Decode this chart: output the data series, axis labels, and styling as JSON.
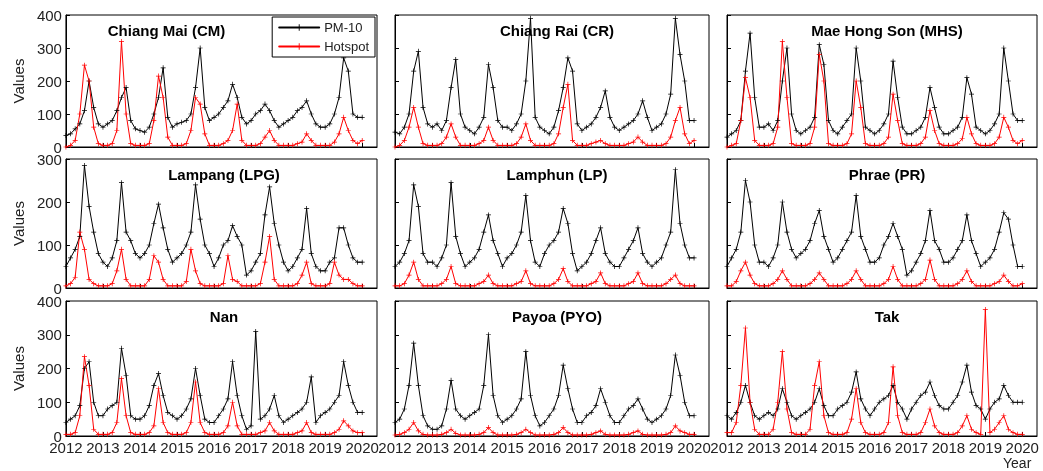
{
  "chart_data": [
    {
      "type": "line",
      "title": "Chiang Mai (CM)",
      "ylabel": "Values",
      "marker": "cross",
      "legend": "top right",
      "tick_labels": "y",
      "xlim": [
        2012,
        2020.4
      ],
      "xticks": [
        2012,
        2013,
        2014,
        2015,
        2016,
        2017,
        2018,
        2019,
        2020
      ],
      "ylim": [
        0,
        400
      ],
      "yticks": [
        0,
        100,
        200,
        300,
        400
      ],
      "x": [
        2012,
        2012.125,
        2012.25,
        2012.375,
        2012.5,
        2012.625,
        2012.75,
        2012.875,
        2013,
        2013.125,
        2013.25,
        2013.375,
        2013.5,
        2013.625,
        2013.75,
        2013.875,
        2014,
        2014.125,
        2014.25,
        2014.375,
        2014.5,
        2014.625,
        2014.75,
        2014.875,
        2015,
        2015.125,
        2015.25,
        2015.375,
        2015.5,
        2015.625,
        2015.75,
        2015.875,
        2016,
        2016.125,
        2016.25,
        2016.375,
        2016.5,
        2016.625,
        2016.75,
        2016.875,
        2017,
        2017.125,
        2017.25,
        2017.375,
        2017.5,
        2017.625,
        2017.75,
        2017.875,
        2018,
        2018.125,
        2018.25,
        2018.375,
        2018.5,
        2018.625,
        2018.75,
        2018.875,
        2019,
        2019.125,
        2019.25,
        2019.375,
        2019.5,
        2019.625,
        2019.75,
        2019.875,
        2020
      ],
      "series": [
        {
          "name": "PM-10",
          "color": "#000000",
          "values": [
            35,
            40,
            55,
            70,
            110,
            200,
            120,
            70,
            60,
            70,
            80,
            110,
            150,
            180,
            80,
            55,
            50,
            45,
            60,
            100,
            150,
            240,
            90,
            60,
            70,
            75,
            80,
            100,
            180,
            300,
            120,
            80,
            90,
            100,
            120,
            140,
            190,
            150,
            90,
            70,
            80,
            100,
            110,
            130,
            110,
            80,
            60,
            70,
            80,
            90,
            110,
            120,
            140,
            100,
            70,
            60,
            60,
            70,
            100,
            150,
            270,
            230,
            100,
            90,
            90
          ]
        },
        {
          "name": "Hotspot",
          "color": "#ff0000",
          "values": [
            0,
            5,
            20,
            100,
            248,
            200,
            60,
            10,
            5,
            5,
            10,
            50,
            320,
            100,
            10,
            5,
            5,
            5,
            10,
            80,
            215,
            150,
            30,
            5,
            5,
            5,
            10,
            50,
            150,
            130,
            40,
            5,
            5,
            5,
            10,
            20,
            50,
            130,
            20,
            5,
            5,
            5,
            10,
            30,
            50,
            20,
            5,
            5,
            5,
            5,
            10,
            15,
            40,
            20,
            5,
            5,
            5,
            5,
            15,
            40,
            90,
            50,
            20,
            10,
            20
          ]
        }
      ]
    },
    {
      "type": "line",
      "title": "Chiang Rai (CR)",
      "marker": "cross",
      "tick_labels": false,
      "xlim": [
        2012,
        2020.4
      ],
      "xticks": [
        2012,
        2013,
        2014,
        2015,
        2016,
        2017,
        2018,
        2019,
        2020
      ],
      "ylim": [
        0,
        400
      ],
      "yticks": [
        0,
        100,
        200,
        300,
        400
      ],
      "x": [
        2012,
        2012.125,
        2012.25,
        2012.375,
        2012.5,
        2012.625,
        2012.75,
        2012.875,
        2013,
        2013.125,
        2013.25,
        2013.375,
        2013.5,
        2013.625,
        2013.75,
        2013.875,
        2014,
        2014.125,
        2014.25,
        2014.375,
        2014.5,
        2014.625,
        2014.75,
        2014.875,
        2015,
        2015.125,
        2015.25,
        2015.375,
        2015.5,
        2015.625,
        2015.75,
        2015.875,
        2016,
        2016.125,
        2016.25,
        2016.375,
        2016.5,
        2016.625,
        2016.75,
        2016.875,
        2017,
        2017.125,
        2017.25,
        2017.375,
        2017.5,
        2017.625,
        2017.75,
        2017.875,
        2018,
        2018.125,
        2018.25,
        2018.375,
        2018.5,
        2018.625,
        2018.75,
        2018.875,
        2019,
        2019.125,
        2019.25,
        2019.375,
        2019.5,
        2019.625,
        2019.75,
        2019.875,
        2020
      ],
      "series": [
        {
          "color": "#000000",
          "values": [
            45,
            40,
            60,
            100,
            230,
            290,
            120,
            70,
            60,
            70,
            50,
            80,
            180,
            265,
            100,
            60,
            50,
            40,
            60,
            90,
            250,
            180,
            80,
            60,
            60,
            50,
            70,
            100,
            200,
            390,
            90,
            60,
            50,
            40,
            60,
            110,
            180,
            270,
            230,
            70,
            50,
            60,
            70,
            90,
            120,
            170,
            90,
            60,
            50,
            60,
            70,
            80,
            100,
            140,
            90,
            50,
            60,
            70,
            100,
            160,
            390,
            280,
            200,
            80,
            80
          ]
        },
        {
          "color": "#ff0000",
          "values": [
            0,
            5,
            20,
            60,
            120,
            60,
            10,
            5,
            5,
            5,
            10,
            30,
            70,
            30,
            5,
            5,
            5,
            5,
            10,
            20,
            60,
            20,
            5,
            5,
            5,
            5,
            10,
            30,
            70,
            20,
            5,
            5,
            5,
            5,
            10,
            40,
            120,
            190,
            20,
            5,
            5,
            5,
            10,
            15,
            20,
            10,
            5,
            5,
            5,
            5,
            10,
            15,
            30,
            15,
            5,
            5,
            5,
            5,
            10,
            30,
            80,
            120,
            40,
            10,
            20
          ]
        }
      ]
    },
    {
      "type": "line",
      "title": "Mae Hong Son (MHS)",
      "marker": "cross",
      "tick_labels": false,
      "xlim": [
        2012,
        2020.4
      ],
      "xticks": [
        2012,
        2013,
        2014,
        2015,
        2016,
        2017,
        2018,
        2019,
        2020
      ],
      "ylim": [
        0,
        400
      ],
      "yticks": [
        0,
        100,
        200,
        300,
        400
      ],
      "x": [
        2012,
        2012.125,
        2012.25,
        2012.375,
        2012.5,
        2012.625,
        2012.75,
        2012.875,
        2013,
        2013.125,
        2013.25,
        2013.375,
        2013.5,
        2013.625,
        2013.75,
        2013.875,
        2014,
        2014.125,
        2014.25,
        2014.375,
        2014.5,
        2014.625,
        2014.75,
        2014.875,
        2015,
        2015.125,
        2015.25,
        2015.375,
        2015.5,
        2015.625,
        2015.75,
        2015.875,
        2016,
        2016.125,
        2016.25,
        2016.375,
        2016.5,
        2016.625,
        2016.75,
        2016.875,
        2017,
        2017.125,
        2017.25,
        2017.375,
        2017.5,
        2017.625,
        2017.75,
        2017.875,
        2018,
        2018.125,
        2018.25,
        2018.375,
        2018.5,
        2018.625,
        2018.75,
        2018.875,
        2019,
        2019.125,
        2019.25,
        2019.375,
        2019.5,
        2019.625,
        2019.75,
        2019.875,
        2020
      ],
      "series": [
        {
          "color": "#000000",
          "values": [
            30,
            40,
            50,
            80,
            230,
            345,
            150,
            60,
            60,
            70,
            50,
            80,
            200,
            300,
            100,
            50,
            40,
            50,
            60,
            90,
            310,
            250,
            80,
            50,
            40,
            60,
            80,
            100,
            300,
            200,
            60,
            50,
            40,
            50,
            70,
            100,
            260,
            150,
            60,
            40,
            40,
            50,
            60,
            90,
            180,
            120,
            60,
            40,
            40,
            50,
            60,
            90,
            210,
            160,
            60,
            50,
            40,
            50,
            70,
            100,
            300,
            200,
            100,
            80,
            80
          ]
        },
        {
          "color": "#ff0000",
          "values": [
            0,
            5,
            10,
            80,
            210,
            150,
            20,
            5,
            5,
            5,
            10,
            60,
            320,
            150,
            10,
            5,
            5,
            5,
            10,
            60,
            280,
            200,
            10,
            5,
            5,
            5,
            10,
            40,
            200,
            120,
            10,
            5,
            5,
            5,
            10,
            30,
            160,
            80,
            10,
            5,
            5,
            5,
            10,
            30,
            110,
            50,
            10,
            5,
            5,
            5,
            10,
            25,
            90,
            40,
            10,
            5,
            5,
            5,
            10,
            30,
            90,
            60,
            20,
            10,
            20
          ]
        }
      ]
    },
    {
      "type": "line",
      "title": "Lampang (LPG)",
      "ylabel": "Values",
      "marker": "cross",
      "tick_labels": "y",
      "xlim": [
        2012,
        2020.4
      ],
      "xticks": [
        2012,
        2013,
        2014,
        2015,
        2016,
        2017,
        2018,
        2019,
        2020
      ],
      "ylim": [
        0,
        300
      ],
      "yticks": [
        0,
        100,
        200,
        300
      ],
      "x": [
        2012,
        2012.125,
        2012.25,
        2012.375,
        2012.5,
        2012.625,
        2012.75,
        2012.875,
        2013,
        2013.125,
        2013.25,
        2013.375,
        2013.5,
        2013.625,
        2013.75,
        2013.875,
        2014,
        2014.125,
        2014.25,
        2014.375,
        2014.5,
        2014.625,
        2014.75,
        2014.875,
        2015,
        2015.125,
        2015.25,
        2015.375,
        2015.5,
        2015.625,
        2015.75,
        2015.875,
        2016,
        2016.125,
        2016.25,
        2016.375,
        2016.5,
        2016.625,
        2016.75,
        2016.875,
        2017,
        2017.125,
        2017.25,
        2017.375,
        2017.5,
        2017.625,
        2017.75,
        2017.875,
        2018,
        2018.125,
        2018.25,
        2018.375,
        2018.5,
        2018.625,
        2018.75,
        2018.875,
        2019,
        2019.125,
        2019.25,
        2019.375,
        2019.5,
        2019.625,
        2019.75,
        2019.875,
        2020
      ],
      "series": [
        {
          "color": "#000000",
          "values": [
            50,
            70,
            90,
            120,
            285,
            190,
            130,
            80,
            60,
            50,
            70,
            110,
            245,
            130,
            110,
            80,
            70,
            80,
            100,
            150,
            195,
            140,
            90,
            60,
            70,
            80,
            100,
            130,
            240,
            160,
            100,
            80,
            50,
            70,
            100,
            110,
            145,
            120,
            100,
            30,
            40,
            60,
            80,
            170,
            235,
            150,
            100,
            60,
            40,
            50,
            70,
            90,
            185,
            80,
            50,
            40,
            40,
            60,
            70,
            140,
            140,
            100,
            70,
            60,
            60
          ]
        },
        {
          "color": "#ff0000",
          "values": [
            5,
            10,
            25,
            130,
            90,
            20,
            10,
            5,
            5,
            5,
            10,
            40,
            90,
            20,
            5,
            5,
            5,
            5,
            20,
            75,
            60,
            20,
            5,
            5,
            5,
            5,
            15,
            90,
            40,
            10,
            5,
            5,
            5,
            5,
            10,
            75,
            20,
            15,
            5,
            5,
            5,
            5,
            10,
            60,
            120,
            20,
            5,
            5,
            5,
            5,
            10,
            30,
            60,
            10,
            5,
            5,
            5,
            10,
            60,
            30,
            20,
            20,
            10,
            5,
            5
          ]
        }
      ]
    },
    {
      "type": "line",
      "title": "Lamphun (LP)",
      "marker": "cross",
      "tick_labels": false,
      "xlim": [
        2012,
        2020.4
      ],
      "xticks": [
        2012,
        2013,
        2014,
        2015,
        2016,
        2017,
        2018,
        2019,
        2020
      ],
      "ylim": [
        0,
        300
      ],
      "yticks": [
        0,
        100,
        200,
        300
      ],
      "x": [
        2012,
        2012.125,
        2012.25,
        2012.375,
        2012.5,
        2012.625,
        2012.75,
        2012.875,
        2013,
        2013.125,
        2013.25,
        2013.375,
        2013.5,
        2013.625,
        2013.75,
        2013.875,
        2014,
        2014.125,
        2014.25,
        2014.375,
        2014.5,
        2014.625,
        2014.75,
        2014.875,
        2015,
        2015.125,
        2015.25,
        2015.375,
        2015.5,
        2015.625,
        2015.75,
        2015.875,
        2016,
        2016.125,
        2016.25,
        2016.375,
        2016.5,
        2016.625,
        2016.75,
        2016.875,
        2017,
        2017.125,
        2017.25,
        2017.375,
        2017.5,
        2017.625,
        2017.75,
        2017.875,
        2018,
        2018.125,
        2018.25,
        2018.375,
        2018.5,
        2018.625,
        2018.75,
        2018.875,
        2019,
        2019.125,
        2019.25,
        2019.375,
        2019.5,
        2019.625,
        2019.75,
        2019.875,
        2020
      ],
      "series": [
        {
          "color": "#000000",
          "values": [
            50,
            60,
            80,
            110,
            240,
            190,
            80,
            60,
            60,
            50,
            70,
            100,
            245,
            120,
            80,
            50,
            60,
            70,
            90,
            130,
            170,
            110,
            80,
            50,
            70,
            80,
            100,
            130,
            215,
            110,
            60,
            50,
            80,
            100,
            110,
            130,
            185,
            150,
            80,
            40,
            50,
            60,
            80,
            110,
            140,
            80,
            60,
            50,
            50,
            70,
            90,
            110,
            140,
            80,
            60,
            50,
            60,
            70,
            100,
            130,
            275,
            150,
            100,
            70,
            70
          ]
        },
        {
          "color": "#ff0000",
          "values": [
            5,
            5,
            10,
            30,
            60,
            20,
            5,
            5,
            5,
            5,
            10,
            20,
            50,
            10,
            5,
            5,
            5,
            5,
            10,
            15,
            30,
            10,
            5,
            5,
            5,
            5,
            10,
            15,
            40,
            10,
            5,
            5,
            5,
            5,
            10,
            20,
            45,
            15,
            5,
            5,
            5,
            5,
            10,
            15,
            35,
            10,
            5,
            5,
            5,
            5,
            10,
            15,
            35,
            10,
            5,
            5,
            5,
            5,
            10,
            20,
            30,
            10,
            5,
            5,
            5
          ]
        }
      ]
    },
    {
      "type": "line",
      "title": "Phrae (PR)",
      "marker": "cross",
      "tick_labels": false,
      "xlim": [
        2012,
        2020.4
      ],
      "xticks": [
        2012,
        2013,
        2014,
        2015,
        2016,
        2017,
        2018,
        2019,
        2020
      ],
      "ylim": [
        0,
        300
      ],
      "yticks": [
        0,
        100,
        200,
        300
      ],
      "x": [
        2012,
        2012.125,
        2012.25,
        2012.375,
        2012.5,
        2012.625,
        2012.75,
        2012.875,
        2013,
        2013.125,
        2013.25,
        2013.375,
        2013.5,
        2013.625,
        2013.75,
        2013.875,
        2014,
        2014.125,
        2014.25,
        2014.375,
        2014.5,
        2014.625,
        2014.75,
        2014.875,
        2015,
        2015.125,
        2015.25,
        2015.375,
        2015.5,
        2015.625,
        2015.75,
        2015.875,
        2016,
        2016.125,
        2016.25,
        2016.375,
        2016.5,
        2016.625,
        2016.75,
        2016.875,
        2017,
        2017.125,
        2017.25,
        2017.375,
        2017.5,
        2017.625,
        2017.75,
        2017.875,
        2018,
        2018.125,
        2018.25,
        2018.375,
        2018.5,
        2018.625,
        2018.75,
        2018.875,
        2019,
        2019.125,
        2019.25,
        2019.375,
        2019.5,
        2019.625,
        2019.75,
        2019.875,
        2020
      ],
      "series": [
        {
          "color": "#000000",
          "values": [
            50,
            70,
            90,
            130,
            250,
            200,
            100,
            60,
            60,
            50,
            70,
            100,
            200,
            130,
            90,
            70,
            80,
            90,
            110,
            150,
            180,
            120,
            90,
            60,
            70,
            90,
            110,
            130,
            215,
            120,
            90,
            60,
            60,
            70,
            100,
            120,
            150,
            120,
            90,
            30,
            40,
            60,
            80,
            110,
            180,
            110,
            90,
            60,
            60,
            70,
            90,
            110,
            170,
            110,
            80,
            50,
            60,
            70,
            90,
            130,
            175,
            160,
            100,
            50,
            50
          ]
        },
        {
          "color": "#ff0000",
          "values": [
            5,
            5,
            15,
            40,
            60,
            30,
            10,
            5,
            5,
            5,
            10,
            20,
            40,
            20,
            5,
            5,
            5,
            5,
            10,
            20,
            35,
            20,
            5,
            5,
            5,
            5,
            10,
            20,
            40,
            20,
            5,
            5,
            5,
            5,
            10,
            20,
            50,
            20,
            5,
            5,
            5,
            5,
            10,
            20,
            65,
            20,
            5,
            5,
            5,
            5,
            10,
            20,
            40,
            15,
            5,
            5,
            5,
            5,
            10,
            15,
            30,
            15,
            5,
            5,
            10
          ]
        }
      ]
    },
    {
      "type": "line",
      "title": "Nan",
      "ylabel": "Values",
      "marker": "cross",
      "xlim": [
        2012,
        2020.4
      ],
      "xticks": [
        2012,
        2013,
        2014,
        2015,
        2016,
        2017,
        2018,
        2019,
        2020
      ],
      "ylim": [
        0,
        400
      ],
      "yticks": [
        0,
        100,
        200,
        300,
        400
      ],
      "x": [
        2012,
        2012.125,
        2012.25,
        2012.375,
        2012.5,
        2012.625,
        2012.75,
        2012.875,
        2013,
        2013.125,
        2013.25,
        2013.375,
        2013.5,
        2013.625,
        2013.75,
        2013.875,
        2014,
        2014.125,
        2014.25,
        2014.375,
        2014.5,
        2014.625,
        2014.75,
        2014.875,
        2015,
        2015.125,
        2015.25,
        2015.375,
        2015.5,
        2015.625,
        2015.75,
        2015.875,
        2016,
        2016.125,
        2016.25,
        2016.375,
        2016.5,
        2016.625,
        2016.75,
        2016.875,
        2017,
        2017.125,
        2017.25,
        2017.375,
        2017.5,
        2017.625,
        2017.75,
        2017.875,
        2018,
        2018.125,
        2018.25,
        2018.375,
        2018.5,
        2018.625,
        2018.75,
        2018.875,
        2019,
        2019.125,
        2019.25,
        2019.375,
        2019.5,
        2019.625,
        2019.75,
        2019.875,
        2020
      ],
      "series": [
        {
          "color": "#000000",
          "values": [
            40,
            50,
            60,
            90,
            200,
            220,
            100,
            60,
            60,
            80,
            90,
            100,
            260,
            180,
            60,
            50,
            50,
            60,
            90,
            150,
            185,
            120,
            70,
            60,
            50,
            60,
            80,
            110,
            200,
            120,
            50,
            40,
            40,
            60,
            80,
            110,
            220,
            120,
            60,
            20,
            30,
            310,
            50,
            60,
            80,
            120,
            60,
            40,
            50,
            60,
            70,
            80,
            100,
            175,
            40,
            60,
            70,
            80,
            100,
            120,
            220,
            150,
            100,
            70,
            70
          ]
        },
        {
          "color": "#ff0000",
          "values": [
            5,
            5,
            10,
            60,
            235,
            150,
            20,
            5,
            5,
            5,
            10,
            40,
            170,
            60,
            10,
            5,
            5,
            5,
            10,
            30,
            140,
            40,
            10,
            5,
            5,
            5,
            10,
            40,
            160,
            40,
            10,
            5,
            5,
            5,
            10,
            30,
            100,
            30,
            5,
            5,
            5,
            5,
            10,
            15,
            40,
            15,
            5,
            5,
            5,
            5,
            10,
            15,
            40,
            10,
            5,
            5,
            5,
            5,
            10,
            20,
            45,
            30,
            15,
            10,
            10
          ]
        }
      ]
    },
    {
      "type": "line",
      "title": "Payoa (PYO)",
      "marker": "cross",
      "tick_labels": "x",
      "xlim": [
        2012,
        2020.4
      ],
      "xticks": [
        2012,
        2013,
        2014,
        2015,
        2016,
        2017,
        2018,
        2019,
        2020
      ],
      "ylim": [
        0,
        400
      ],
      "yticks": [
        0,
        100,
        200,
        300,
        400
      ],
      "x": [
        2012,
        2012.125,
        2012.25,
        2012.375,
        2012.5,
        2012.625,
        2012.75,
        2012.875,
        2013,
        2013.125,
        2013.25,
        2013.375,
        2013.5,
        2013.625,
        2013.75,
        2013.875,
        2014,
        2014.125,
        2014.25,
        2014.375,
        2014.5,
        2014.625,
        2014.75,
        2014.875,
        2015,
        2015.125,
        2015.25,
        2015.375,
        2015.5,
        2015.625,
        2015.75,
        2015.875,
        2016,
        2016.125,
        2016.25,
        2016.375,
        2016.5,
        2016.625,
        2016.75,
        2016.875,
        2017,
        2017.125,
        2017.25,
        2017.375,
        2017.5,
        2017.625,
        2017.75,
        2017.875,
        2018,
        2018.125,
        2018.25,
        2018.375,
        2018.5,
        2018.625,
        2018.75,
        2018.875,
        2019,
        2019.125,
        2019.25,
        2019.375,
        2019.5,
        2019.625,
        2019.75,
        2019.875,
        2020
      ],
      "series": [
        {
          "color": "#000000",
          "values": [
            40,
            50,
            80,
            150,
            275,
            150,
            60,
            30,
            20,
            20,
            30,
            80,
            165,
            80,
            60,
            50,
            60,
            70,
            80,
            150,
            300,
            120,
            60,
            40,
            50,
            60,
            80,
            110,
            250,
            120,
            60,
            30,
            40,
            60,
            80,
            120,
            210,
            140,
            80,
            40,
            40,
            60,
            70,
            90,
            140,
            100,
            60,
            40,
            40,
            60,
            80,
            90,
            110,
            80,
            50,
            40,
            50,
            60,
            80,
            120,
            240,
            180,
            100,
            60,
            60
          ]
        },
        {
          "color": "#ff0000",
          "values": [
            3,
            5,
            10,
            20,
            40,
            15,
            5,
            3,
            3,
            3,
            5,
            10,
            20,
            8,
            3,
            3,
            3,
            3,
            5,
            10,
            25,
            10,
            3,
            3,
            3,
            3,
            5,
            10,
            20,
            10,
            3,
            3,
            3,
            3,
            5,
            10,
            25,
            10,
            3,
            3,
            3,
            3,
            5,
            10,
            15,
            5,
            3,
            3,
            3,
            3,
            5,
            10,
            15,
            5,
            3,
            3,
            3,
            3,
            5,
            10,
            30,
            15,
            10,
            5,
            5
          ]
        }
      ]
    },
    {
      "type": "line",
      "title": "Tak",
      "xlabel": "Year",
      "marker": "cross",
      "tick_labels": "x",
      "xlim": [
        2012,
        2020.4
      ],
      "xticks": [
        2012,
        2013,
        2014,
        2015,
        2016,
        2017,
        2018,
        2019,
        2020
      ],
      "ylim": [
        0,
        400
      ],
      "yticks": [
        0,
        100,
        200,
        300,
        400
      ],
      "x": [
        2012,
        2012.125,
        2012.25,
        2012.375,
        2012.5,
        2012.625,
        2012.75,
        2012.875,
        2013,
        2013.125,
        2013.25,
        2013.375,
        2013.5,
        2013.625,
        2013.75,
        2013.875,
        2014,
        2014.125,
        2014.25,
        2014.375,
        2014.5,
        2014.625,
        2014.75,
        2014.875,
        2015,
        2015.125,
        2015.25,
        2015.375,
        2015.5,
        2015.625,
        2015.75,
        2015.875,
        2016,
        2016.125,
        2016.25,
        2016.375,
        2016.5,
        2016.625,
        2016.75,
        2016.875,
        2017,
        2017.125,
        2017.25,
        2017.375,
        2017.5,
        2017.625,
        2017.75,
        2017.875,
        2018,
        2018.125,
        2018.25,
        2018.375,
        2018.5,
        2018.625,
        2018.75,
        2018.875,
        2019,
        2019.125,
        2019.25,
        2019.375,
        2019.5,
        2019.625,
        2019.75,
        2019.875,
        2020
      ],
      "series": [
        {
          "color": "#000000",
          "values": [
            60,
            50,
            70,
            100,
            150,
            100,
            60,
            50,
            60,
            70,
            60,
            80,
            140,
            100,
            60,
            50,
            60,
            70,
            80,
            100,
            140,
            90,
            60,
            60,
            80,
            90,
            100,
            130,
            190,
            110,
            80,
            60,
            80,
            100,
            110,
            120,
            150,
            100,
            80,
            50,
            80,
            100,
            120,
            130,
            160,
            120,
            90,
            80,
            80,
            100,
            120,
            160,
            210,
            130,
            90,
            80,
            50,
            80,
            100,
            110,
            150,
            120,
            100,
            100,
            100
          ]
        },
        {
          "color": "#ff0000",
          "values": [
            10,
            10,
            40,
            150,
            320,
            100,
            20,
            5,
            5,
            5,
            20,
            100,
            250,
            80,
            10,
            5,
            5,
            5,
            20,
            150,
            220,
            60,
            10,
            5,
            5,
            5,
            10,
            50,
            140,
            40,
            10,
            5,
            5,
            5,
            10,
            40,
            205,
            60,
            10,
            5,
            5,
            5,
            10,
            40,
            80,
            30,
            10,
            5,
            5,
            5,
            10,
            30,
            60,
            20,
            10,
            5,
            375,
            10,
            20,
            40,
            60,
            20,
            10,
            5,
            5
          ]
        }
      ]
    }
  ]
}
